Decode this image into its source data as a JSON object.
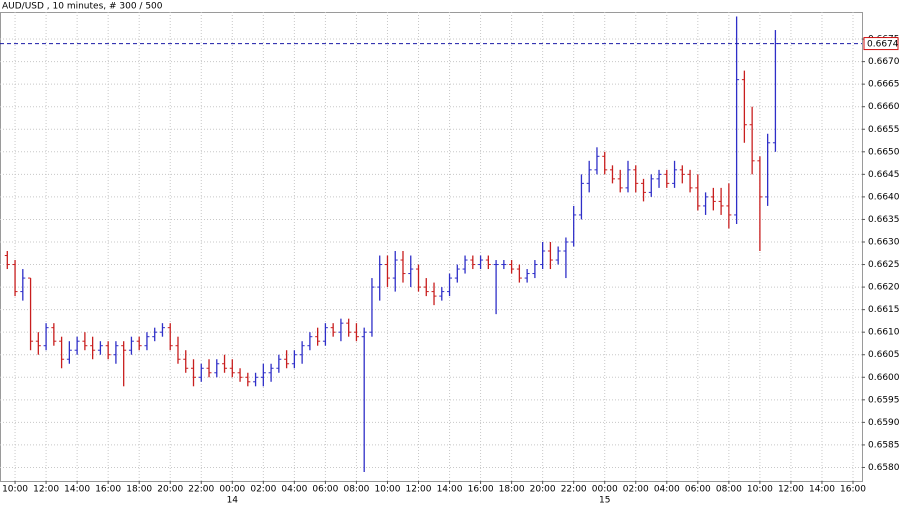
{
  "chart_data": {
    "type": "ohlc",
    "title": "AUD/USD , 10 minutes, # 300 / 500",
    "up_color": "#2f2fc8",
    "down_color": "#c81e1e",
    "grid": true,
    "xlim": [
      9.03,
      64.58
    ],
    "ylim": [
      0.6577,
      0.6681
    ],
    "xticks": [
      {
        "value": 10,
        "label": "10:00"
      },
      {
        "value": 12,
        "label": "12:00"
      },
      {
        "value": 14,
        "label": "14:00"
      },
      {
        "value": 16,
        "label": "16:00"
      },
      {
        "value": 18,
        "label": "18:00"
      },
      {
        "value": 20,
        "label": "20:00"
      },
      {
        "value": 22,
        "label": "22:00"
      },
      {
        "value": 24,
        "label": "00:00"
      },
      {
        "value": 26,
        "label": "02:00"
      },
      {
        "value": 28,
        "label": "04:00"
      },
      {
        "value": 30,
        "label": "06:00"
      },
      {
        "value": 32,
        "label": "08:00"
      },
      {
        "value": 34,
        "label": "10:00"
      },
      {
        "value": 36,
        "label": "12:00"
      },
      {
        "value": 38,
        "label": "14:00"
      },
      {
        "value": 40,
        "label": "16:00"
      },
      {
        "value": 42,
        "label": "18:00"
      },
      {
        "value": 44,
        "label": "20:00"
      },
      {
        "value": 46,
        "label": "22:00"
      },
      {
        "value": 48,
        "label": "00:00"
      },
      {
        "value": 50,
        "label": "02:00"
      },
      {
        "value": 52,
        "label": "04:00"
      },
      {
        "value": 54,
        "label": "06:00"
      },
      {
        "value": 56,
        "label": "08:00"
      },
      {
        "value": 58,
        "label": "10:00"
      },
      {
        "value": 60,
        "label": "12:00"
      },
      {
        "value": 62,
        "label": "14:00"
      },
      {
        "value": 64,
        "label": "16:00"
      }
    ],
    "day_ticks": [
      {
        "value": 24,
        "label": "14"
      },
      {
        "value": 48,
        "label": "15"
      }
    ],
    "yticks": [
      {
        "value": 0.658,
        "label": "0.6580"
      },
      0.6585,
      {
        "value": 0.659,
        "label": "0.6590"
      },
      0.6595,
      {
        "value": 0.66,
        "label": "0.6600"
      },
      0.6605,
      {
        "value": 0.661,
        "label": "0.6610"
      },
      0.6615,
      {
        "value": 0.662,
        "label": "0.6620"
      },
      0.6625,
      {
        "value": 0.663,
        "label": "0.6630"
      },
      0.6635,
      {
        "value": 0.664,
        "label": "0.6640"
      },
      0.6645,
      {
        "value": 0.665,
        "label": "0.6650"
      },
      0.6655,
      {
        "value": 0.666,
        "label": "0.6660"
      },
      0.6665,
      {
        "value": 0.667,
        "label": "0.6670"
      },
      0.6675
    ],
    "last_price": 0.6674,
    "x": [
      9.5,
      10,
      10.5,
      11,
      11.5,
      12,
      12.5,
      13,
      13.5,
      14,
      14.5,
      15,
      15.5,
      16,
      16.5,
      17,
      17.5,
      18,
      18.5,
      19,
      19.5,
      20,
      20.5,
      21,
      21.5,
      22,
      22.5,
      23,
      23.5,
      24,
      24.5,
      25,
      25.5,
      26,
      26.5,
      27,
      27.5,
      28,
      28.5,
      29,
      29.5,
      30,
      30.5,
      31,
      31.5,
      32,
      32.5,
      33,
      33.5,
      34,
      34.5,
      35,
      35.5,
      36,
      36.5,
      37,
      37.5,
      38,
      38.5,
      39,
      39.5,
      40,
      40.5,
      41,
      41.5,
      42,
      42.5,
      43,
      43.5,
      44,
      44.5,
      45,
      45.5,
      46,
      46.5,
      47,
      47.5,
      48,
      48.5,
      49,
      49.5,
      50,
      50.5,
      51,
      51.5,
      52,
      52.5,
      53,
      53.5,
      54,
      54.5,
      55,
      55.5,
      56,
      56.5,
      57,
      57.5,
      58,
      58.5,
      59
    ],
    "open": [
      0.6627,
      0.6625,
      0.6619,
      0.6622,
      0.6608,
      0.6607,
      0.6611,
      0.6608,
      0.6604,
      0.6606,
      0.6608,
      0.6607,
      0.6606,
      0.6607,
      0.6605,
      0.6607,
      0.6606,
      0.6608,
      0.6607,
      0.6609,
      0.661,
      0.6611,
      0.6607,
      0.6604,
      0.6602,
      0.66,
      0.6602,
      0.6601,
      0.6603,
      0.6602,
      0.6601,
      0.66,
      0.6599,
      0.66,
      0.6601,
      0.6602,
      0.6604,
      0.6603,
      0.6605,
      0.6607,
      0.6609,
      0.6608,
      0.6611,
      0.661,
      0.6612,
      0.661,
      0.6609,
      0.661,
      0.662,
      0.6625,
      0.6622,
      0.6626,
      0.6623,
      0.6624,
      0.662,
      0.6619,
      0.6618,
      0.6619,
      0.6622,
      0.6624,
      0.6626,
      0.6625,
      0.6626,
      0.6625,
      0.6625,
      0.6625,
      0.6624,
      0.6622,
      0.6623,
      0.6625,
      0.6628,
      0.6626,
      0.6628,
      0.663,
      0.6636,
      0.6643,
      0.6646,
      0.6649,
      0.6646,
      0.6644,
      0.6642,
      0.6646,
      0.6643,
      0.6641,
      0.6644,
      0.6645,
      0.6643,
      0.6646,
      0.6645,
      0.6642,
      0.6638,
      0.664,
      0.6639,
      0.6638,
      0.6636,
      0.6666,
      0.6656,
      0.6648,
      0.664,
      0.6652
    ],
    "high": [
      0.6628,
      0.6626,
      0.6624,
      0.6622,
      0.661,
      0.6612,
      0.6612,
      0.6609,
      0.6608,
      0.6609,
      0.661,
      0.6609,
      0.6608,
      0.6608,
      0.6608,
      0.6608,
      0.6609,
      0.6609,
      0.661,
      0.6611,
      0.6612,
      0.6612,
      0.6609,
      0.6606,
      0.6604,
      0.6603,
      0.6604,
      0.6604,
      0.6605,
      0.6604,
      0.6602,
      0.6601,
      0.6601,
      0.6603,
      0.6603,
      0.6605,
      0.6606,
      0.6606,
      0.6608,
      0.661,
      0.6611,
      0.6612,
      0.6612,
      0.6613,
      0.6613,
      0.6612,
      0.6611,
      0.6622,
      0.6627,
      0.6627,
      0.6628,
      0.6628,
      0.6627,
      0.6625,
      0.6622,
      0.6621,
      0.662,
      0.6623,
      0.6625,
      0.6627,
      0.6627,
      0.6627,
      0.6627,
      0.6626,
      0.6626,
      0.6626,
      0.6625,
      0.6624,
      0.6626,
      0.663,
      0.663,
      0.6629,
      0.6631,
      0.6638,
      0.6645,
      0.6648,
      0.6651,
      0.665,
      0.6647,
      0.6646,
      0.6648,
      0.6647,
      0.6644,
      0.6645,
      0.6646,
      0.6646,
      0.6648,
      0.6647,
      0.6646,
      0.6645,
      0.6641,
      0.6642,
      0.6642,
      0.6643,
      0.668,
      0.6668,
      0.666,
      0.6649,
      0.6654,
      0.6677
    ],
    "low": [
      0.6624,
      0.6618,
      0.6617,
      0.6606,
      0.6605,
      0.6606,
      0.6607,
      0.6602,
      0.6603,
      0.6605,
      0.6606,
      0.6604,
      0.6605,
      0.6604,
      0.6603,
      0.6598,
      0.6605,
      0.6606,
      0.6606,
      0.6608,
      0.6609,
      0.6606,
      0.6603,
      0.6601,
      0.6598,
      0.6599,
      0.66,
      0.66,
      0.6601,
      0.66,
      0.6599,
      0.6598,
      0.6598,
      0.6598,
      0.6599,
      0.6601,
      0.6602,
      0.6602,
      0.6603,
      0.6606,
      0.6607,
      0.6607,
      0.6609,
      0.6608,
      0.6609,
      0.6608,
      0.6579,
      0.6609,
      0.6617,
      0.662,
      0.6619,
      0.6621,
      0.662,
      0.6619,
      0.6618,
      0.6616,
      0.6617,
      0.6618,
      0.6621,
      0.6623,
      0.6624,
      0.6624,
      0.6624,
      0.6614,
      0.6624,
      0.6623,
      0.6621,
      0.6621,
      0.6622,
      0.6624,
      0.6624,
      0.6625,
      0.6622,
      0.6629,
      0.6635,
      0.6641,
      0.6645,
      0.6645,
      0.6643,
      0.6641,
      0.6641,
      0.6641,
      0.6639,
      0.664,
      0.6642,
      0.6642,
      0.6642,
      0.6643,
      0.6641,
      0.6637,
      0.6636,
      0.6637,
      0.6636,
      0.6633,
      0.6634,
      0.6652,
      0.6645,
      0.6628,
      0.6638,
      0.665
    ],
    "close": [
      0.6625,
      0.6619,
      0.6622,
      0.6608,
      0.6607,
      0.6611,
      0.6608,
      0.6604,
      0.6606,
      0.6608,
      0.6607,
      0.6606,
      0.6607,
      0.6605,
      0.6607,
      0.6606,
      0.6608,
      0.6607,
      0.6609,
      0.661,
      0.6611,
      0.6607,
      0.6604,
      0.6602,
      0.66,
      0.6602,
      0.6601,
      0.6603,
      0.6602,
      0.6601,
      0.66,
      0.6599,
      0.66,
      0.6601,
      0.6602,
      0.6604,
      0.6603,
      0.6605,
      0.6607,
      0.6609,
      0.6608,
      0.6611,
      0.661,
      0.6612,
      0.661,
      0.6609,
      0.661,
      0.662,
      0.6625,
      0.6622,
      0.6626,
      0.6623,
      0.6624,
      0.662,
      0.6619,
      0.6618,
      0.6619,
      0.6622,
      0.6624,
      0.6626,
      0.6625,
      0.6626,
      0.6625,
      0.6625,
      0.6625,
      0.6624,
      0.6622,
      0.6623,
      0.6625,
      0.6628,
      0.6626,
      0.6628,
      0.663,
      0.6636,
      0.6643,
      0.6646,
      0.6649,
      0.6646,
      0.6644,
      0.6642,
      0.6646,
      0.6643,
      0.6641,
      0.6644,
      0.6645,
      0.6643,
      0.6646,
      0.6645,
      0.6642,
      0.6638,
      0.664,
      0.6639,
      0.6638,
      0.6636,
      0.6666,
      0.6656,
      0.6648,
      0.664,
      0.6652,
      0.6674
    ]
  }
}
